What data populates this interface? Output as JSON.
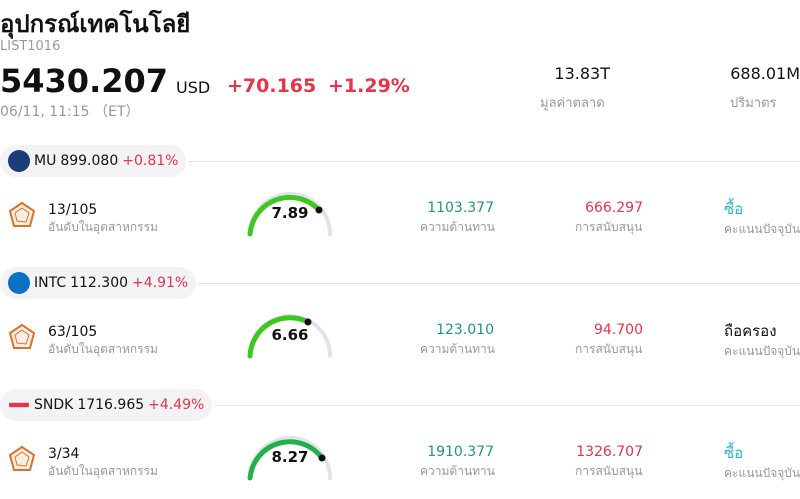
{
  "header": {
    "title": "อุปกรณ์เทคโนโลยี",
    "code": "LIST1016",
    "price": "5430.207",
    "currency": "USD",
    "change": "+70.165",
    "change_pct": "+1.29%",
    "time": "06/11, 11:15 （ET）",
    "stats": [
      {
        "value": "13.83T",
        "label": "มูลค่าตลาด"
      },
      {
        "value": "688.01M",
        "label": "ปริมาตร"
      }
    ]
  },
  "stocks": [
    {
      "ticker": "MU",
      "price": "899.080",
      "change": "+0.81%",
      "rank": "13/105",
      "rank_label": "อันดับในอุตสาหกรรม",
      "score": "7.89",
      "resistance": "1103.377",
      "resistance_label": "ความต้านทาน",
      "support": "666.297",
      "support_label": "การสนับสนุน",
      "rating": "ซื้อ",
      "rating_label": "คะแนนปัจจุบัน"
    },
    {
      "ticker": "INTC",
      "price": "112.300",
      "change": "+4.91%",
      "rank": "63/105",
      "rank_label": "อันดับในอุตสาหกรรม",
      "score": "6.66",
      "resistance": "123.010",
      "resistance_label": "ความต้านทาน",
      "support": "94.700",
      "support_label": "การสนับสนุน",
      "rating": "ถือครอง",
      "rating_label": "คะแนนปัจจุบัน"
    },
    {
      "ticker": "SNDK",
      "price": "1716.965",
      "change": "+4.49%",
      "rank": "3/34",
      "rank_label": "อันดับในอุตสาหกรรม",
      "score": "8.27",
      "resistance": "1910.377",
      "resistance_label": "ความต้านทาน",
      "support": "1326.707",
      "support_label": "การสนับสนุน",
      "rating": "ซื้อ",
      "rating_label": "คะแนนปัจจุบัน"
    }
  ]
}
